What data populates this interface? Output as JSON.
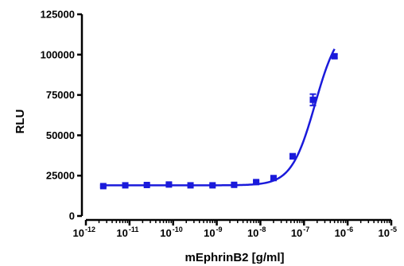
{
  "chart_data": {
    "type": "scatter",
    "xlabel": "mEphrinB2 [g/ml]",
    "ylabel": "RLU",
    "x_scale": "log",
    "xlim": [
      1e-12,
      1e-05
    ],
    "ylim": [
      0,
      125000
    ],
    "yticks": [
      {
        "value": 0,
        "label": "0"
      },
      {
        "value": 25000,
        "label": "25000"
      },
      {
        "value": 50000,
        "label": "50000"
      },
      {
        "value": 75000,
        "label": "75000"
      },
      {
        "value": 100000,
        "label": "100000"
      },
      {
        "value": 125000,
        "label": "125000"
      }
    ],
    "xticks": [
      {
        "value": 1e-12,
        "base": "10",
        "exp": "-12"
      },
      {
        "value": 1e-11,
        "base": "10",
        "exp": "-11"
      },
      {
        "value": 1e-10,
        "base": "10",
        "exp": "-10"
      },
      {
        "value": 1e-09,
        "base": "10",
        "exp": "-9"
      },
      {
        "value": 1e-08,
        "base": "10",
        "exp": "-8"
      },
      {
        "value": 1e-07,
        "base": "10",
        "exp": "-7"
      },
      {
        "value": 1e-06,
        "base": "10",
        "exp": "-6"
      },
      {
        "value": 1e-05,
        "base": "10",
        "exp": "-5"
      }
    ],
    "series": [
      {
        "color": "#1a1adb",
        "marker": "square",
        "points": [
          {
            "x": 2.5e-12,
            "y": 18500,
            "err": 600
          },
          {
            "x": 8e-12,
            "y": 19000,
            "err": 500
          },
          {
            "x": 2.5e-11,
            "y": 19200,
            "err": 500
          },
          {
            "x": 8e-11,
            "y": 19500,
            "err": 600
          },
          {
            "x": 2.5e-10,
            "y": 19000,
            "err": 500
          },
          {
            "x": 8e-10,
            "y": 19000,
            "err": 500
          },
          {
            "x": 2.5e-09,
            "y": 19300,
            "err": 600
          },
          {
            "x": 8e-09,
            "y": 21000,
            "err": 700
          },
          {
            "x": 2e-08,
            "y": 23500,
            "err": 800
          },
          {
            "x": 5.5e-08,
            "y": 37000,
            "err": 1500
          },
          {
            "x": 1.6e-07,
            "y": 72000,
            "err": 3500
          },
          {
            "x": 5e-07,
            "y": 99000,
            "err": 1200
          }
        ],
        "fit": {
          "model": "4PL",
          "bottom": 19000,
          "top": 120000,
          "ec50": 1.8e-07,
          "hill": 1.6
        }
      }
    ],
    "grid": false,
    "legend": "none"
  }
}
